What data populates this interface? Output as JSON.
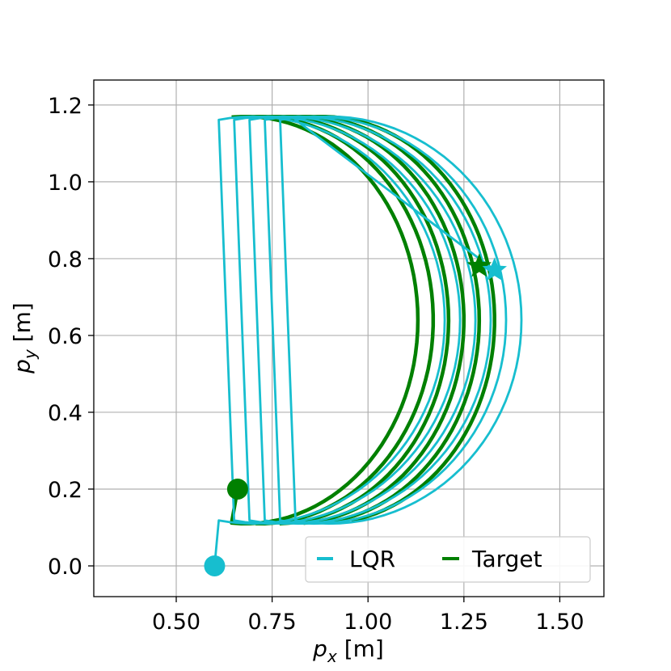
{
  "chart_data": {
    "type": "line",
    "xlabel": "p_x [m]",
    "ylabel": "p_y [m]",
    "xlim": [
      0.285,
      1.615
    ],
    "ylim": [
      -0.08,
      1.265
    ],
    "xticks": [
      "0.50",
      "0.75",
      "1.00",
      "1.25",
      "1.50"
    ],
    "yticks": [
      "0.0",
      "0.2",
      "0.4",
      "0.6",
      "0.8",
      "1.0",
      "1.2"
    ],
    "grid": true,
    "legend": {
      "placement": "lower-right",
      "columns": 2
    },
    "arc_params": {
      "cy": 0.64,
      "ry": 0.53,
      "a_start": -1.65,
      "a_end": 1.65,
      "loops": 6,
      "x_step": 0.04
    },
    "series": [
      {
        "name": "LQR",
        "color": "#17becf",
        "start_marker": {
          "x": 0.6,
          "y": 0.0,
          "shape": "circle"
        },
        "end_marker": {
          "x": 1.33,
          "y": 0.77,
          "shape": "star"
        }
      },
      {
        "name": "Target",
        "color": "#008000",
        "start_marker": {
          "x": 0.66,
          "y": 0.2,
          "shape": "circle"
        },
        "end_marker": {
          "x": 1.29,
          "y": 0.78,
          "shape": "star"
        }
      }
    ]
  }
}
